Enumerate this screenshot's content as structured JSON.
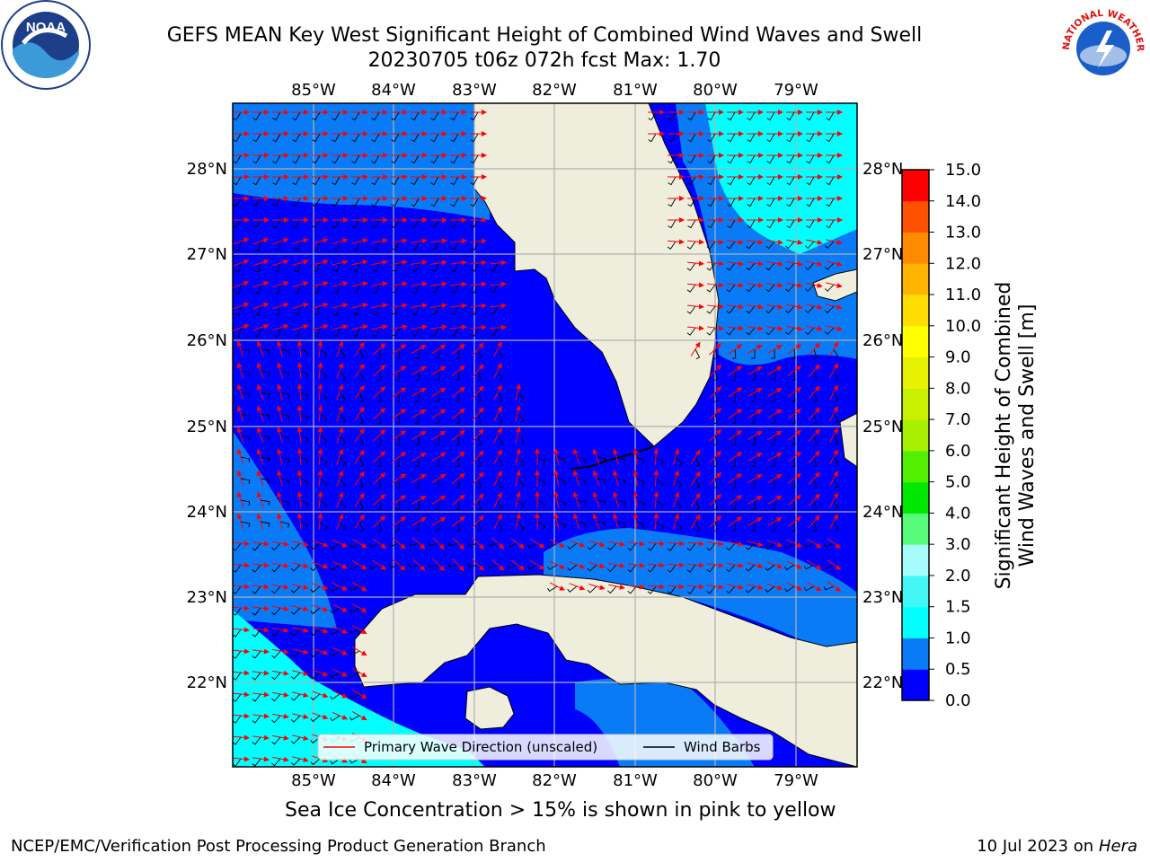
{
  "title_line1": "GEFS MEAN Key West Significant Height of Combined Wind Waves and Swell",
  "title_line2": "20230705 t06z 072h fcst   Max: 1.70",
  "footer_left": "NCEP/EMC/Verification Post Processing Product Generation Branch",
  "footer_right_date": "10 Jul 2023 on ",
  "footer_right_host": "Hera",
  "sea_ice_note": "Sea Ice Concentration > 15% is shown in pink to yellow",
  "logos": {
    "left": "NOAA",
    "right": "NATIONAL WEATHER SERVICE"
  },
  "legend": {
    "wave_dir": "Primary Wave Direction (unscaled)",
    "wind_barbs": "Wind Barbs"
  },
  "map": {
    "lon_ticks": [
      "85°W",
      "84°W",
      "83°W",
      "82°W",
      "81°W",
      "80°W",
      "79°W"
    ],
    "lat_ticks": [
      "28°N",
      "27°N",
      "26°N",
      "25°N",
      "24°N",
      "23°N",
      "22°N"
    ],
    "colors": {
      "land": "#efeedc",
      "grid": "#b0b0b0",
      "arrow": "#ff0000",
      "barb": "#000000"
    }
  },
  "colorbar": {
    "label_line1": "Significant Height of Combined",
    "label_line2": "Wind Waves and Swell [m]",
    "levels": [
      "0.0",
      "0.5",
      "1.0",
      "1.5",
      "2.0",
      "3.0",
      "4.0",
      "5.0",
      "6.0",
      "7.0",
      "8.0",
      "9.0",
      "10.0",
      "11.0",
      "12.0",
      "13.0",
      "14.0",
      "15.0"
    ],
    "colors": [
      "#0000ff",
      "#0a7bf7",
      "#00ffff",
      "#43f7f7",
      "#a6fbfb",
      "#56fc7a",
      "#00e800",
      "#52f000",
      "#a8f000",
      "#c8f000",
      "#e6f200",
      "#ffff00",
      "#ffdd00",
      "#ffb400",
      "#ff8c00",
      "#ff5200",
      "#ff0000"
    ]
  }
}
